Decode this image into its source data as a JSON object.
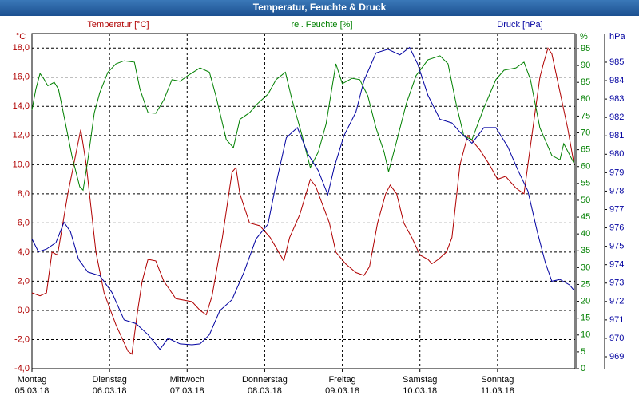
{
  "chart_data": {
    "type": "line",
    "title": "Temperatur, Feuchte & Druck",
    "xlim": [
      0,
      168
    ],
    "xticks": [
      {
        "value": 0,
        "label": "Montag",
        "date": "05.03.18"
      },
      {
        "value": 24,
        "label": "Dienstag",
        "date": "06.03.18"
      },
      {
        "value": 48,
        "label": "Mittwoch",
        "date": "07.03.18"
      },
      {
        "value": 72,
        "label": "Donnerstag",
        "date": "08.03.18"
      },
      {
        "value": 96,
        "label": "Freitag",
        "date": "09.03.18"
      },
      {
        "value": 120,
        "label": "Samstag",
        "date": "10.03.18"
      },
      {
        "value": 144,
        "label": "Sonntag",
        "date": "11.03.18"
      }
    ],
    "grid": true,
    "ylabel": "°C",
    "ylim": [
      -4,
      19
    ],
    "yticks": [
      {
        "value": -4,
        "label": "-4,0"
      },
      {
        "value": -2,
        "label": "-2,0"
      },
      {
        "value": 0,
        "label": "0,0"
      },
      {
        "value": 2,
        "label": "2,0"
      },
      {
        "value": 4,
        "label": "4,0"
      },
      {
        "value": 6,
        "label": "6,0"
      },
      {
        "value": 8,
        "label": "8,0"
      },
      {
        "value": 10,
        "label": "10,0"
      },
      {
        "value": 12,
        "label": "12,0"
      },
      {
        "value": 14,
        "label": "14,0"
      },
      {
        "value": 16,
        "label": "16,0"
      },
      {
        "value": 18,
        "label": "18,0"
      }
    ],
    "y2label": "%",
    "y2lim": [
      0,
      99.5
    ],
    "y2ticks": [
      0,
      5,
      10,
      15,
      20,
      25,
      30,
      35,
      40,
      45,
      50,
      55,
      60,
      65,
      70,
      75,
      80,
      85,
      90,
      95
    ],
    "y3label": "hPa",
    "y3lim": [
      968.35,
      986.56
    ],
    "y3ticks": [
      969,
      970,
      971,
      972,
      973,
      974,
      975,
      976,
      977,
      978,
      979,
      980,
      981,
      982,
      983,
      984,
      985
    ],
    "series": [
      {
        "name": "Temperatur [°C]",
        "color": "#b00000",
        "axis": "y",
        "x": [
          0,
          2.5,
          4.5,
          6.2,
          7.9,
          11.1,
          15.1,
          16.8,
          19.8,
          22.3,
          26,
          29.7,
          30.9,
          32.7,
          34.1,
          35.9,
          38.3,
          40.8,
          44.5,
          49.5,
          52,
          53.9,
          55.7,
          58.9,
          61.9,
          63.1,
          64.3,
          67.3,
          70.5,
          73.7,
          77.9,
          79.7,
          82.9,
          86.1,
          87.8,
          90.3,
          92,
          94,
          97,
          100.2,
          102.7,
          104.4,
          106.9,
          109.4,
          110.8,
          112.8,
          115,
          117.5,
          120,
          122.5,
          123.7,
          125.7,
          128.2,
          129.9,
          132.4,
          134.8,
          138.6,
          141.5,
          144,
          146.5,
          149.7,
          152.2,
          153.4,
          157.1,
          158.3,
          159.6,
          160.8,
          163.3,
          165.7,
          167.7
        ],
        "values": [
          1.2,
          1.0,
          1.2,
          4.0,
          3.8,
          8,
          12.4,
          10,
          4,
          1.2,
          -1,
          -2.8,
          -3,
          0,
          2,
          3.5,
          3.4,
          2,
          0.8,
          0.6,
          0,
          -0.3,
          1,
          5,
          9.5,
          9.8,
          8,
          6,
          5.8,
          5,
          3.4,
          5,
          6.6,
          9,
          8.5,
          7,
          6,
          4,
          3.2,
          2.6,
          2.4,
          3,
          6,
          8,
          8.6,
          8,
          6,
          5,
          3.8,
          3.5,
          3.2,
          3.5,
          4,
          5,
          10,
          12,
          11,
          10,
          9,
          9.2,
          8.4,
          8,
          10,
          16,
          17,
          18,
          17.6,
          15,
          12.5,
          10
        ]
      },
      {
        "name": "rel. Feuchte [%]",
        "color": "#008000",
        "axis": "y2",
        "x": [
          0,
          1.2,
          2.5,
          3.7,
          4.9,
          6.9,
          8.2,
          9.9,
          12.4,
          14.8,
          15.8,
          17.3,
          19.3,
          21,
          23.5,
          26,
          28.5,
          31.7,
          33.4,
          35.9,
          38.3,
          40.8,
          43.3,
          45.8,
          48.2,
          52,
          54.9,
          56.9,
          60.1,
          62.3,
          64.3,
          67.3,
          69.8,
          73,
          75.5,
          78.4,
          80.4,
          83.6,
          86.1,
          88.6,
          91,
          94,
          96,
          99,
          101.4,
          103.9,
          106.4,
          108.9,
          110.3,
          112.6,
          115.8,
          118.8,
          122.5,
          126.2,
          128.7,
          131.2,
          133.6,
          136.1,
          139.8,
          143.5,
          146,
          149.7,
          152.2,
          154.2,
          157.1,
          160.8,
          163.3,
          164.5,
          167.7
        ],
        "values": [
          76.8,
          83,
          87.6,
          86,
          84,
          85,
          83,
          75,
          63,
          54,
          53,
          62,
          76,
          82,
          88,
          90.5,
          91.4,
          91,
          83,
          76,
          75.8,
          79.8,
          85.8,
          85.3,
          87,
          89.3,
          88,
          81,
          68,
          65.6,
          74,
          76,
          78.7,
          81.5,
          85.8,
          88,
          80,
          69,
          59.7,
          64.4,
          72.7,
          90.5,
          84.6,
          86.2,
          85.8,
          81,
          71.5,
          64.4,
          58.5,
          66.8,
          78.7,
          87,
          91.7,
          92.9,
          90.5,
          78.7,
          69,
          68,
          77.5,
          85.8,
          88.6,
          89.3,
          91,
          85.8,
          71.5,
          63.3,
          62,
          66.8,
          60.9
        ]
      },
      {
        "name": "Druck [hPa]",
        "color": "#0000a0",
        "axis": "y3",
        "x": [
          0,
          2,
          4.5,
          7.4,
          9.9,
          11.9,
          14.4,
          17.3,
          21,
          24.7,
          28.5,
          32.2,
          35.9,
          39.6,
          42.1,
          45.8,
          49.5,
          52,
          54.9,
          58.1,
          61.9,
          65.6,
          69.3,
          73,
          75.5,
          78.7,
          82.1,
          85.4,
          88.6,
          91.5,
          93.5,
          96.5,
          100.2,
          102.7,
          106.4,
          110.1,
          113.8,
          116.8,
          119.3,
          122.5,
          126.2,
          129.9,
          132.4,
          136.1,
          139.8,
          143.5,
          147.2,
          150.4,
          153.4,
          156.3,
          158.8,
          160.8,
          163.3,
          166.3,
          167.7
        ],
        "values": [
          975.4,
          974.7,
          974.85,
          975.2,
          976.3,
          975.8,
          974.3,
          973.6,
          973.4,
          972.5,
          971,
          970.8,
          970.2,
          969.4,
          970,
          969.7,
          969.65,
          969.7,
          970.2,
          971.5,
          972.1,
          973.6,
          975.4,
          976.2,
          978.4,
          980.9,
          981.45,
          980,
          979.1,
          977.8,
          979.3,
          981,
          982.3,
          984,
          985.5,
          985.7,
          985.4,
          985.8,
          984.9,
          983.2,
          981.9,
          981.7,
          981.2,
          980.6,
          981.45,
          981.45,
          980.4,
          979.1,
          978,
          975.8,
          974.1,
          973.1,
          973.2,
          972.9,
          972.6
        ]
      }
    ]
  }
}
